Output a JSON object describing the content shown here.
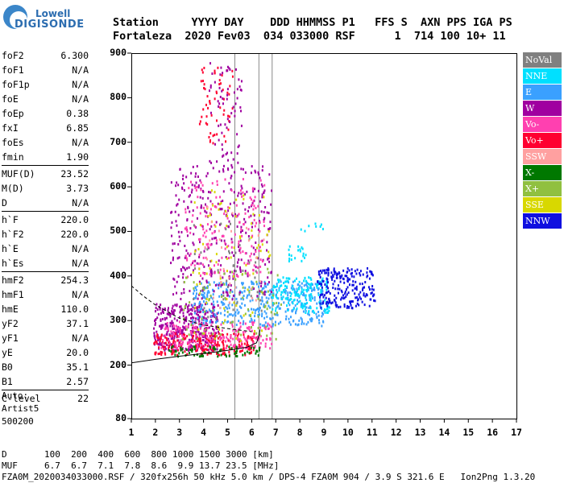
{
  "logo": {
    "line1": "Lowell",
    "line2": "DIGISONDE"
  },
  "header": {
    "labels": "Station     YYYY DAY    DDD HHMMSS P1   FFS S  AXN PPS IGA PS",
    "values": "Fortaleza  2020 Fev03  034 033000 RSF      1  714 100 10+ 11"
  },
  "params_group1": [
    {
      "name": "foF2",
      "value": "6.300"
    },
    {
      "name": "foF1",
      "value": "N/A"
    },
    {
      "name": "foF1p",
      "value": "N/A"
    },
    {
      "name": "foE",
      "value": "N/A"
    },
    {
      "name": "foEp",
      "value": "0.38"
    },
    {
      "name": "fxI",
      "value": "6.85"
    },
    {
      "name": "foEs",
      "value": "N/A"
    },
    {
      "name": "fmin",
      "value": "1.90"
    }
  ],
  "params_group2": [
    {
      "name": "MUF(D)",
      "value": "23.52"
    },
    {
      "name": "M(D)",
      "value": "3.73"
    },
    {
      "name": "D",
      "value": "N/A"
    }
  ],
  "params_group3": [
    {
      "name": "h`F",
      "value": "220.0"
    },
    {
      "name": "h`F2",
      "value": "220.0"
    },
    {
      "name": "h`E",
      "value": "N/A"
    },
    {
      "name": "h`Es",
      "value": "N/A"
    }
  ],
  "params_group4": [
    {
      "name": "hmF2",
      "value": "254.3"
    },
    {
      "name": "hmF1",
      "value": "N/A"
    },
    {
      "name": "hmE",
      "value": "110.0"
    },
    {
      "name": "yF2",
      "value": "37.1"
    },
    {
      "name": "yF1",
      "value": "N/A"
    },
    {
      "name": "yE",
      "value": "20.0"
    },
    {
      "name": "B0",
      "value": "35.1"
    },
    {
      "name": "B1",
      "value": "2.57"
    }
  ],
  "params_group5": [
    {
      "name": "C-level",
      "value": "22"
    }
  ],
  "autoscaling": {
    "line1": "Auto:",
    "line2": "Artist5",
    "line3": "500200"
  },
  "legend": [
    {
      "label": "NoVal",
      "color": "#808080"
    },
    {
      "label": "NNE",
      "color": "#00e0ff"
    },
    {
      "label": "E",
      "color": "#3aa0ff"
    },
    {
      "label": "W",
      "color": "#a000a0"
    },
    {
      "label": "Vo-",
      "color": "#ff40b0"
    },
    {
      "label": "Vo+",
      "color": "#ff0030"
    },
    {
      "label": "SSW",
      "color": "#ffa0a0"
    },
    {
      "label": "X-",
      "color": "#007800"
    },
    {
      "label": "X+",
      "color": "#90c040"
    },
    {
      "label": "SSE",
      "color": "#d8d800"
    },
    {
      "label": "NNW",
      "color": "#1010e0"
    }
  ],
  "chart_data": {
    "type": "scatter",
    "xlim": [
      1,
      17
    ],
    "ylim": [
      80,
      900
    ],
    "x_ticks": [
      "1",
      "2",
      "3",
      "4",
      "5",
      "6",
      "7",
      "8",
      "9",
      "10",
      "11",
      "12",
      "13",
      "14",
      "15",
      "16",
      "17"
    ],
    "y_ticks": [
      "80",
      "200",
      "300",
      "400",
      "500",
      "600",
      "700",
      "800",
      "900"
    ],
    "vertical_marker_lines": [
      5.3,
      6.3,
      6.85
    ],
    "profile_line": [
      [
        1,
        205
      ],
      [
        2,
        213
      ],
      [
        3,
        220
      ],
      [
        4,
        226
      ],
      [
        5,
        233
      ],
      [
        5.8,
        240
      ],
      [
        6.2,
        250
      ],
      [
        6.3,
        265
      ],
      [
        6.35,
        280
      ]
    ],
    "dashed_profile": [
      [
        1,
        378
      ],
      [
        1.5,
        355
      ],
      [
        2,
        335
      ],
      [
        2.5,
        320
      ],
      [
        3,
        305
      ],
      [
        4,
        290
      ],
      [
        5,
        282
      ],
      [
        6,
        275
      ]
    ],
    "clusters": [
      {
        "color": "#a000a0",
        "x": [
          1.9,
          4.6
        ],
        "y": [
          235,
          340
        ],
        "n": 380
      },
      {
        "color": "#ff0030",
        "x": [
          1.9,
          6.2
        ],
        "y": [
          225,
          275
        ],
        "n": 240
      },
      {
        "color": "#ff40b0",
        "x": [
          2.2,
          6.8
        ],
        "y": [
          240,
          300
        ],
        "n": 200
      },
      {
        "color": "#007800",
        "x": [
          2.5,
          6.4
        ],
        "y": [
          222,
          245
        ],
        "n": 70
      },
      {
        "color": "#3aa0ff",
        "x": [
          3.5,
          9.0
        ],
        "y": [
          290,
          390
        ],
        "n": 400
      },
      {
        "color": "#00e0ff",
        "x": [
          6.8,
          9.2
        ],
        "y": [
          320,
          400
        ],
        "n": 160
      },
      {
        "color": "#1010e0",
        "x": [
          8.7,
          11.1
        ],
        "y": [
          330,
          420
        ],
        "n": 220
      },
      {
        "color": "#a000a0",
        "x": [
          2.6,
          6.8
        ],
        "y": [
          350,
          650
        ],
        "n": 350
      },
      {
        "color": "#ff40b0",
        "x": [
          3.2,
          6.5
        ],
        "y": [
          400,
          620
        ],
        "n": 160
      },
      {
        "color": "#d8d800",
        "x": [
          3.5,
          6.8
        ],
        "y": [
          250,
          600
        ],
        "n": 90
      },
      {
        "color": "#90c040",
        "x": [
          3.0,
          7.2
        ],
        "y": [
          260,
          420
        ],
        "n": 80
      },
      {
        "color": "#ff0030",
        "x": [
          3.8,
          5.2
        ],
        "y": [
          700,
          870
        ],
        "n": 60
      },
      {
        "color": "#a000a0",
        "x": [
          4.2,
          5.6
        ],
        "y": [
          650,
          880
        ],
        "n": 70
      },
      {
        "color": "#808080",
        "x": [
          3.5,
          6.5
        ],
        "y": [
          300,
          520
        ],
        "n": 40
      },
      {
        "color": "#ffa0a0",
        "x": [
          4.0,
          6.5
        ],
        "y": [
          330,
          560
        ],
        "n": 30
      },
      {
        "color": "#00e0ff",
        "x": [
          7.5,
          8.3
        ],
        "y": [
          430,
          470
        ],
        "n": 20
      },
      {
        "color": "#00e0ff",
        "x": [
          8.0,
          9.0
        ],
        "y": [
          500,
          520
        ],
        "n": 8
      }
    ]
  },
  "footer": {
    "line1": "D       100  200  400  600  800 1000 1500 3000 [km]",
    "line2": "MUF     6.7  6.7  7.1  7.8  8.6  9.9 13.7 23.5 [MHz]",
    "line3": "FZA0M_2020034033000.RSF / 320fx256h 50 kHz 5.0 km / DPS-4 FZA0M 904 / 3.9 S 321.6 E   Ion2Png 1.3.20"
  }
}
